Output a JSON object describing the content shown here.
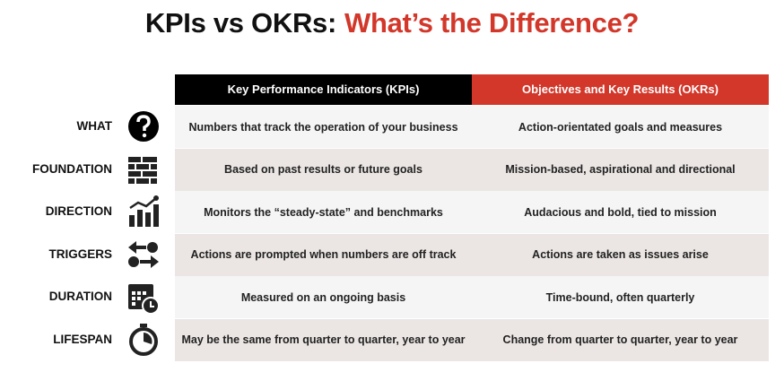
{
  "header": {
    "title": "KPIs vs OKRs:",
    "title_highlight": "What’s the Difference?"
  },
  "table": {
    "columns": [
      "Key Performance Indicators (KPIs)",
      "Objectives and Key Results (OKRs)"
    ],
    "rows": [
      {
        "label": "WHAT",
        "kpi": "Numbers that track the operation of your business",
        "okr": "Action-orientated goals and measures"
      },
      {
        "label": "FOUNDATION",
        "kpi": "Based on past results or future goals",
        "okr": "Mission-based, aspirational and directional"
      },
      {
        "label": "DIRECTION",
        "kpi": "Monitors the “steady-state” and benchmarks",
        "okr": "Audacious and bold, tied to mission"
      },
      {
        "label": "TRIGGERS",
        "kpi": "Actions are prompted when numbers are off track",
        "okr": "Actions are taken as issues arise"
      },
      {
        "label": "DURATION",
        "kpi": "Measured on an ongoing basis",
        "okr": "Time-bound, often quarterly"
      },
      {
        "label": "LIFESPAN",
        "kpi": "May be the same from quarter to quarter, year to year",
        "okr": "Change from quarter to quarter, year to year"
      }
    ]
  }
}
